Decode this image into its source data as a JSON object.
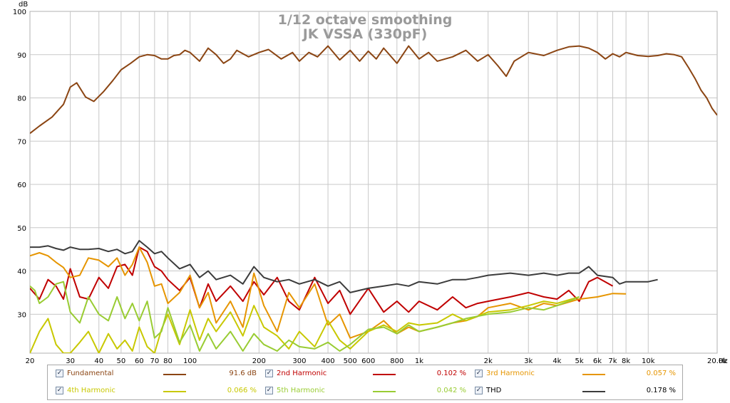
{
  "chart_data": {
    "type": "line",
    "title": "1/12 octave smoothing",
    "subtitle": "JK VSSA (330pF)",
    "ylabel": "dB",
    "xunit": "Hz",
    "xscale": "log",
    "xlim": [
      20,
      20000
    ],
    "ylim": [
      21,
      100
    ],
    "grid": true,
    "x_tick_labels": [
      {
        "v": 20,
        "t": "20"
      },
      {
        "v": 30,
        "t": "30"
      },
      {
        "v": 40,
        "t": "40"
      },
      {
        "v": 50,
        "t": "50"
      },
      {
        "v": 60,
        "t": "60"
      },
      {
        "v": 70,
        "t": "70"
      },
      {
        "v": 80,
        "t": "80"
      },
      {
        "v": 100,
        "t": "100"
      },
      {
        "v": 200,
        "t": "200"
      },
      {
        "v": 300,
        "t": "300"
      },
      {
        "v": 400,
        "t": "400"
      },
      {
        "v": 500,
        "t": "500"
      },
      {
        "v": 600,
        "t": "600"
      },
      {
        "v": 800,
        "t": "800"
      },
      {
        "v": 1000,
        "t": "1k"
      },
      {
        "v": 2000,
        "t": "2k"
      },
      {
        "v": 3000,
        "t": "3k"
      },
      {
        "v": 4000,
        "t": "4k"
      },
      {
        "v": 5000,
        "t": "5k"
      },
      {
        "v": 6000,
        "t": "6k"
      },
      {
        "v": 7000,
        "t": "7k"
      },
      {
        "v": 8000,
        "t": "8k"
      },
      {
        "v": 10000,
        "t": "10k"
      },
      {
        "v": 20000,
        "t": "20.0k"
      }
    ],
    "y_ticks": [
      30,
      40,
      50,
      60,
      70,
      80,
      90,
      100
    ],
    "series": [
      {
        "name": "Fundamental",
        "color": "#8b4513",
        "value_label": "91.6 dB",
        "x": [
          20,
          22,
          25,
          28,
          30,
          32,
          35,
          38,
          42,
          46,
          50,
          55,
          60,
          65,
          70,
          75,
          80,
          85,
          90,
          95,
          100,
          110,
          120,
          130,
          140,
          150,
          160,
          180,
          200,
          220,
          250,
          280,
          300,
          330,
          360,
          400,
          450,
          500,
          550,
          600,
          650,
          700,
          800,
          900,
          1000,
          1100,
          1200,
          1400,
          1600,
          1800,
          2000,
          2200,
          2400,
          2600,
          3000,
          3500,
          4000,
          4500,
          5000,
          5500,
          6000,
          6500,
          7000,
          7500,
          8000,
          9000,
          10000,
          11000,
          12000,
          13000,
          14000,
          15000,
          16000,
          17000,
          18000,
          19000,
          20000
        ],
        "y": [
          71.8,
          73.5,
          75.6,
          78.5,
          82.5,
          83.5,
          80.2,
          79.2,
          81.5,
          84.0,
          86.5,
          88.0,
          89.5,
          90.0,
          89.8,
          89.0,
          89.0,
          89.8,
          90.0,
          91.0,
          90.5,
          88.5,
          91.5,
          90.0,
          88.0,
          89.0,
          91.0,
          89.5,
          90.5,
          91.2,
          89.0,
          90.5,
          88.5,
          90.5,
          89.5,
          92.0,
          88.8,
          91.0,
          88.5,
          90.8,
          89.0,
          91.5,
          88.0,
          92.0,
          89.0,
          90.5,
          88.5,
          89.5,
          91.0,
          88.5,
          90.0,
          87.5,
          85.0,
          88.5,
          90.5,
          89.8,
          91.0,
          91.8,
          92.0,
          91.5,
          90.5,
          89.0,
          90.2,
          89.5,
          90.5,
          89.8,
          89.6,
          89.8,
          90.2,
          90.0,
          89.5,
          87.0,
          84.5,
          81.8,
          80.0,
          77.6,
          76.0
        ]
      },
      {
        "name": "2nd Harmonic",
        "color": "#c00000",
        "value_label": "0.102 %",
        "x": [
          20,
          22,
          24,
          26,
          28,
          30,
          33,
          36,
          40,
          44,
          48,
          52,
          56,
          60,
          65,
          70,
          75,
          80,
          90,
          100,
          110,
          120,
          130,
          150,
          170,
          190,
          210,
          240,
          270,
          300,
          350,
          400,
          450,
          500,
          600,
          700,
          800,
          900,
          1000,
          1200,
          1400,
          1600,
          1800,
          2000,
          2500,
          3000,
          3500,
          4000,
          4500,
          5000,
          5500,
          6000,
          7000
        ],
        "y": [
          36.0,
          33.5,
          38.0,
          36.5,
          33.5,
          40.5,
          34.0,
          33.5,
          38.5,
          36.0,
          41.0,
          41.5,
          39.0,
          45.5,
          44.5,
          41.0,
          40.0,
          38.0,
          35.5,
          38.5,
          31.5,
          37.0,
          33.0,
          36.5,
          33.0,
          37.5,
          34.5,
          38.5,
          33.0,
          31.0,
          38.5,
          32.5,
          35.5,
          30.0,
          36.0,
          30.5,
          33.0,
          30.5,
          33.0,
          31.0,
          34.0,
          31.5,
          32.5,
          33.0,
          34.0,
          35.0,
          34.0,
          33.5,
          35.5,
          33.0,
          37.5,
          38.5,
          36.5
        ]
      },
      {
        "name": "3rd Harmonic",
        "color": "#e69500",
        "value_label": "0.057 %",
        "x": [
          20,
          22,
          24,
          26,
          28,
          30,
          33,
          36,
          40,
          44,
          48,
          52,
          56,
          60,
          65,
          70,
          75,
          80,
          90,
          100,
          110,
          120,
          130,
          150,
          170,
          190,
          210,
          240,
          270,
          300,
          350,
          400,
          450,
          500,
          600,
          700,
          800,
          900,
          1000,
          1200,
          1400,
          1600,
          1800,
          2000,
          2500,
          3000,
          3500,
          4000,
          5000,
          6000,
          7000,
          8000
        ],
        "y": [
          43.5,
          44.2,
          43.5,
          42.0,
          40.8,
          38.5,
          39.0,
          43.0,
          42.5,
          41.0,
          43.0,
          39.0,
          41.5,
          45.5,
          42.0,
          36.5,
          37.0,
          32.5,
          35.0,
          39.0,
          31.5,
          35.0,
          28.0,
          33.0,
          27.0,
          39.5,
          32.0,
          26.0,
          35.0,
          31.5,
          37.0,
          27.5,
          30.0,
          24.5,
          26.0,
          28.5,
          25.5,
          27.0,
          26.0,
          27.0,
          28.0,
          28.5,
          29.5,
          31.5,
          32.5,
          31.0,
          32.5,
          32.0,
          33.5,
          34.0,
          34.8,
          34.7
        ]
      },
      {
        "name": "4th Harmonic",
        "color": "#c8c800",
        "value_label": "0.066 %",
        "x": [
          20,
          22,
          24,
          26,
          28,
          30,
          33,
          36,
          40,
          44,
          48,
          52,
          56,
          60,
          65,
          70,
          75,
          80,
          90,
          100,
          110,
          120,
          130,
          150,
          170,
          190,
          210,
          240,
          270,
          300,
          350,
          400,
          450,
          500,
          600,
          700,
          800,
          900,
          1000,
          1200,
          1400,
          1600,
          2000,
          2500,
          3000,
          3500,
          4000,
          5000
        ],
        "y": [
          21.0,
          26.0,
          29.0,
          23.0,
          21.0,
          21.0,
          23.5,
          26.0,
          21.0,
          25.5,
          22.0,
          24.0,
          21.5,
          27.0,
          22.5,
          21.0,
          26.5,
          30.0,
          23.0,
          31.0,
          24.0,
          29.0,
          26.0,
          30.5,
          25.0,
          32.0,
          27.0,
          25.0,
          22.0,
          26.0,
          22.5,
          28.5,
          24.0,
          22.0,
          26.0,
          27.5,
          26.0,
          28.0,
          27.5,
          28.0,
          30.0,
          28.5,
          30.5,
          31.0,
          32.0,
          33.0,
          32.5,
          34.0
        ]
      },
      {
        "name": "5th Harmonic",
        "color": "#99cc33",
        "value_label": "0.042 %",
        "x": [
          20,
          21,
          22,
          24,
          26,
          28,
          30,
          33,
          36,
          40,
          44,
          48,
          52,
          56,
          60,
          65,
          70,
          75,
          80,
          90,
          100,
          110,
          120,
          130,
          150,
          170,
          190,
          210,
          240,
          270,
          300,
          350,
          400,
          450,
          500,
          600,
          700,
          800,
          900,
          1000,
          1200,
          1400,
          1600,
          2000,
          2500,
          3000,
          3500,
          4000,
          4500,
          5000
        ],
        "y": [
          36.5,
          35.5,
          32.5,
          34.0,
          37.0,
          37.5,
          30.5,
          28.0,
          34.0,
          30.0,
          28.5,
          34.0,
          29.0,
          32.5,
          28.5,
          33.0,
          24.5,
          26.0,
          31.5,
          23.5,
          27.5,
          21.5,
          25.5,
          22.0,
          26.0,
          21.5,
          25.5,
          23.0,
          21.5,
          24.0,
          22.5,
          22.0,
          23.5,
          21.5,
          23.0,
          26.5,
          27.0,
          25.5,
          27.5,
          26.0,
          27.0,
          28.0,
          29.0,
          30.0,
          30.5,
          31.5,
          31.0,
          32.0,
          33.0,
          34.0
        ]
      },
      {
        "name": "THD",
        "color": "#3c3c3c",
        "value_label": "0.178 %",
        "x": [
          20,
          22,
          24,
          26,
          28,
          30,
          33,
          36,
          40,
          44,
          48,
          52,
          56,
          60,
          65,
          70,
          75,
          80,
          90,
          100,
          110,
          120,
          130,
          150,
          170,
          190,
          210,
          240,
          270,
          300,
          350,
          400,
          450,
          500,
          600,
          700,
          800,
          900,
          1000,
          1200,
          1400,
          1600,
          1800,
          2000,
          2500,
          3000,
          3500,
          4000,
          4500,
          5000,
          5500,
          6000,
          7000,
          7500,
          8000,
          9000,
          10000,
          11000
        ],
        "y": [
          45.5,
          45.5,
          45.8,
          45.2,
          44.8,
          45.5,
          45.0,
          45.0,
          45.2,
          44.5,
          45.0,
          44.0,
          44.5,
          47.0,
          45.5,
          44.0,
          44.5,
          43.0,
          40.5,
          41.5,
          38.5,
          40.0,
          38.0,
          39.0,
          37.0,
          41.0,
          38.5,
          37.5,
          38.0,
          37.0,
          38.0,
          36.5,
          37.5,
          35.0,
          36.0,
          36.5,
          37.0,
          36.5,
          37.5,
          37.0,
          38.0,
          38.0,
          38.5,
          39.0,
          39.5,
          39.0,
          39.5,
          39.0,
          39.5,
          39.5,
          41.0,
          39.0,
          38.5,
          37.0,
          37.5,
          37.5,
          37.5,
          38.0
        ]
      }
    ]
  }
}
